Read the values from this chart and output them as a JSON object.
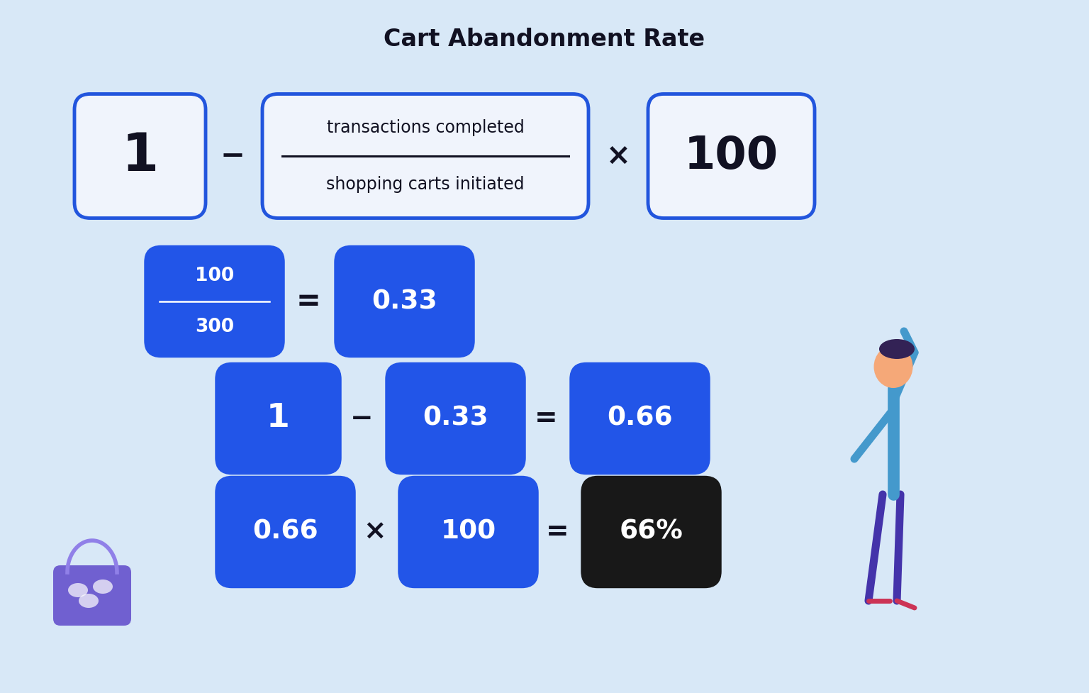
{
  "title": "Cart Abandonment Rate",
  "title_fontsize": 24,
  "bg_color": "#d8e8f7",
  "white_box_bg": "#f0f4fc",
  "white_box_border": "#2255dd",
  "blue_box_bg": "#2255e8",
  "black_box_bg": "#181818",
  "white_text": "#ffffff",
  "dark_text": "#111122",
  "row1_formula": {
    "box1_text": "1",
    "operator1": "−",
    "numerator": "transactions completed",
    "denominator": "shopping carts initiated",
    "operator2": "×",
    "box3_text": "100"
  },
  "row2": {
    "frac_num": "100",
    "frac_den": "300",
    "eq": "=",
    "result": "0.33"
  },
  "row3": {
    "val1": "1",
    "op": "−",
    "val2": "0.33",
    "eq": "=",
    "result": "0.66"
  },
  "row4": {
    "val1": "0.66",
    "op": "×",
    "val2": "100",
    "eq": "=",
    "result": "66%"
  },
  "fig_w": 15.36,
  "fig_h": 9.77,
  "dpi": 100
}
